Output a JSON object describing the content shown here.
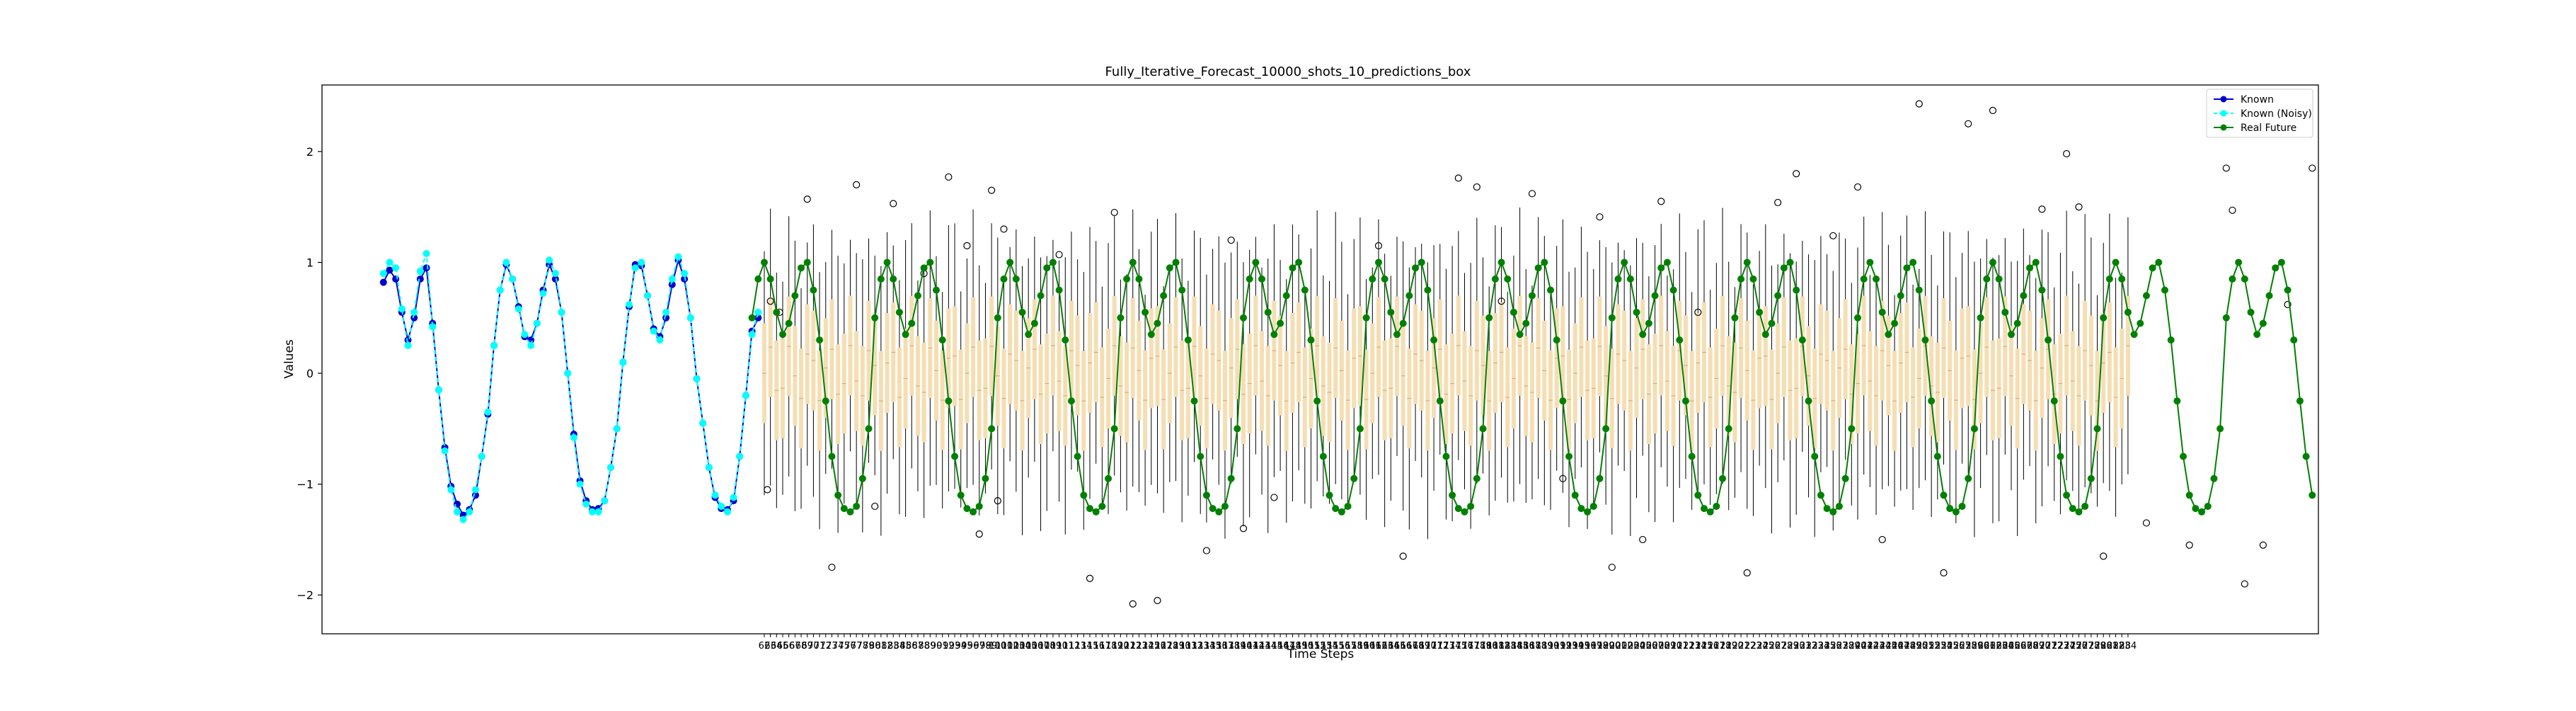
{
  "chart_data": {
    "type": "line",
    "title": "Fully_Iterative_Forecast_10000_shots_10_predictions_box",
    "xlabel": "Time Steps",
    "ylabel": "Values",
    "ylim": [
      -2.35,
      2.6
    ],
    "yticks": [
      -2,
      -1,
      0,
      1,
      2
    ],
    "grid": false,
    "legend_position": "top-right",
    "colors": {
      "known": "#0000cd",
      "known_noisy": "#00ffff",
      "real_future": "#008000",
      "box": "#f5deb3",
      "whisker": "#000000"
    },
    "series": [
      {
        "name": "Known",
        "x_start": 0,
        "values": [
          0.82,
          0.93,
          0.85,
          0.55,
          0.3,
          0.5,
          0.85,
          0.95,
          0.45,
          -0.15,
          -0.67,
          -1.02,
          -1.18,
          -1.28,
          -1.23,
          -1.1,
          -0.75,
          -0.37,
          0.25,
          0.75,
          0.98,
          0.85,
          0.6,
          0.33,
          0.3,
          0.45,
          0.75,
          0.98,
          0.85,
          0.55,
          0.0,
          -0.55,
          -0.97,
          -1.15,
          -1.23,
          -1.22,
          -1.15,
          -0.85,
          -0.5,
          0.1,
          0.6,
          0.98,
          0.97,
          0.7,
          0.4,
          0.33,
          0.5,
          0.8,
          1.02,
          0.85,
          0.5,
          -0.05,
          -0.45,
          -0.85,
          -1.12,
          -1.22,
          -1.23,
          -1.15,
          -0.75,
          -0.2,
          0.38,
          0.5
        ]
      },
      {
        "name": "Known (Noisy)",
        "x_start": 0,
        "values": [
          0.9,
          1.0,
          0.95,
          0.58,
          0.25,
          0.55,
          0.92,
          1.08,
          0.42,
          -0.15,
          -0.7,
          -1.05,
          -1.25,
          -1.32,
          -1.25,
          -1.05,
          -0.75,
          -0.35,
          0.25,
          0.75,
          1.0,
          0.85,
          0.58,
          0.35,
          0.25,
          0.45,
          0.72,
          1.02,
          0.9,
          0.55,
          0.0,
          -0.58,
          -1.0,
          -1.18,
          -1.25,
          -1.25,
          -1.15,
          -0.85,
          -0.5,
          0.1,
          0.62,
          0.95,
          1.0,
          0.7,
          0.38,
          0.3,
          0.55,
          0.85,
          1.05,
          0.9,
          0.5,
          -0.05,
          -0.45,
          -0.85,
          -1.1,
          -1.2,
          -1.25,
          -1.12,
          -0.75,
          -0.2,
          0.35,
          0.55
        ]
      },
      {
        "name": "Real Future",
        "x_start": 60,
        "period": 20,
        "values": [
          0.5,
          0.85,
          1.0,
          0.85,
          0.55,
          0.35,
          0.45,
          0.7,
          0.95,
          1.0,
          0.75,
          0.3,
          -0.25,
          -0.75,
          -1.1,
          -1.22,
          -1.25,
          -1.2,
          -0.95,
          -0.5
        ]
      }
    ],
    "boxplot": {
      "x_start": 62,
      "count": 223,
      "median_amplitude": 0.25,
      "median_period": 3.3,
      "box_half_height": 0.45,
      "whisker_half_height": 1.1
    },
    "outliers": [
      [
        62.5,
        -1.05
      ],
      [
        63,
        0.65
      ],
      [
        64.5,
        0.55
      ],
      [
        69,
        1.57
      ],
      [
        73,
        -1.75
      ],
      [
        77,
        1.7
      ],
      [
        80,
        -1.2
      ],
      [
        83,
        1.53
      ],
      [
        88,
        0.9
      ],
      [
        92,
        1.77
      ],
      [
        95,
        1.15
      ],
      [
        97,
        -1.45
      ],
      [
        99,
        1.65
      ],
      [
        100,
        -1.15
      ],
      [
        101,
        1.3
      ],
      [
        110,
        1.07
      ],
      [
        115,
        -1.85
      ],
      [
        119,
        1.45
      ],
      [
        122,
        -2.08
      ],
      [
        126,
        -2.05
      ],
      [
        134,
        -1.6
      ],
      [
        138,
        1.2
      ],
      [
        140,
        -1.4
      ],
      [
        145,
        -1.12
      ],
      [
        162,
        1.15
      ],
      [
        166,
        -1.65
      ],
      [
        175,
        1.76
      ],
      [
        178,
        1.68
      ],
      [
        182,
        0.65
      ],
      [
        187,
        1.62
      ],
      [
        192,
        -0.95
      ],
      [
        198,
        1.41
      ],
      [
        200,
        -1.75
      ],
      [
        205,
        -1.5
      ],
      [
        208,
        1.55
      ],
      [
        214,
        0.55
      ],
      [
        222,
        -1.8
      ],
      [
        227,
        1.54
      ],
      [
        230,
        1.8
      ],
      [
        236,
        1.24
      ],
      [
        240,
        1.68
      ],
      [
        244,
        -1.5
      ],
      [
        250,
        2.43
      ],
      [
        254,
        -1.8
      ],
      [
        258,
        2.25
      ],
      [
        262,
        2.37
      ],
      [
        270,
        1.48
      ],
      [
        274,
        1.98
      ],
      [
        276,
        1.5
      ],
      [
        280,
        -1.65
      ],
      [
        287,
        -1.35
      ],
      [
        294,
        -1.55
      ],
      [
        300,
        1.85
      ],
      [
        301,
        1.47
      ],
      [
        303,
        -1.9
      ],
      [
        306,
        -1.55
      ],
      [
        310,
        0.62
      ],
      [
        314,
        1.85
      ]
    ]
  }
}
